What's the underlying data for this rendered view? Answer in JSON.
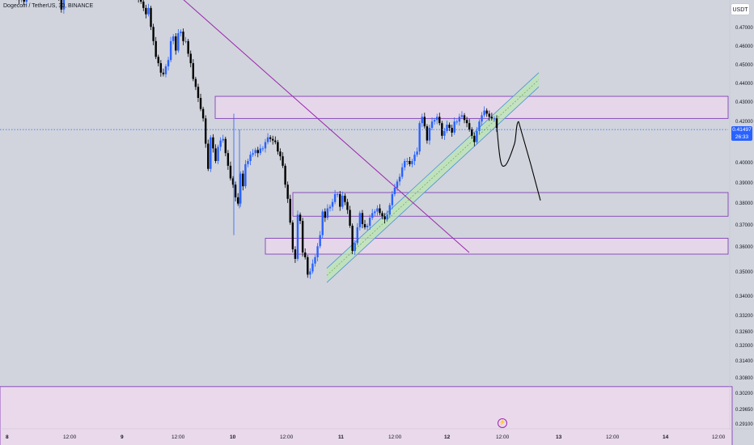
{
  "header": {
    "title": "Dogecoin / TetherUS, 30, BINANCE",
    "currency_button": "USDT"
  },
  "price_tag": {
    "price": "0.41497",
    "countdown": "26:33"
  },
  "event_badge_icon": "lightning-bolt-icon",
  "colors": {
    "background": "#d1d4dc",
    "up_candle": "#2962ff",
    "down_candle": "#000000",
    "zone_fill": "#f0d9ef",
    "zone_border": "#7b2fb4",
    "trendline": "#9c27b0",
    "channel_fill": "#b9e6b3",
    "channel_border": "#4a90d9",
    "current_price_line": "#2962ff"
  },
  "chart_data": {
    "type": "candlestick",
    "y_scale": "price (USDT)",
    "y_tick_labels": [
      "0.47000",
      "0.46000",
      "0.45000",
      "0.44000",
      "0.43000",
      "0.42000",
      "0.41497",
      "0.40000",
      "0.39000",
      "0.38000",
      "0.37000",
      "0.36000",
      "0.35000",
      "0.34000",
      "0.33200",
      "0.32600",
      "0.32000",
      "0.31400",
      "0.30800",
      "0.30200",
      "0.29650",
      "0.29100"
    ],
    "x_tick_labels": [
      "8",
      "12:00",
      "9",
      "12:00",
      "10",
      "12:00",
      "11",
      "12:00",
      "12",
      "12:00",
      "13",
      "12:00",
      "14",
      "12:00"
    ],
    "ylim": [
      0.29,
      0.478
    ],
    "current_price": 0.41497,
    "close_series": [
      0.4615,
      0.4605,
      0.463,
      0.4585,
      0.4595,
      0.461,
      0.457,
      0.456,
      0.458,
      0.4555,
      0.46,
      0.464,
      0.4665,
      0.463,
      0.4605,
      0.462,
      0.4655,
      0.4735,
      0.475,
      0.4705,
      0.465,
      0.462,
      0.46,
      0.4565,
      0.453,
      0.4575,
      0.4605,
      0.4575,
      0.462,
      0.4635,
      0.464,
      0.461,
      0.465,
      0.463,
      0.4595,
      0.462,
      0.464,
      0.4665,
      0.464,
      0.464,
      0.462,
      0.4625,
      0.4645,
      0.463,
      0.4595,
      0.4625,
      0.465,
      0.463,
      0.462,
      0.4645,
      0.4655,
      0.464,
      0.4595,
      0.457,
      0.4585,
      0.4565,
      0.4555,
      0.4535,
      0.4515,
      0.4535,
      0.4475,
      0.443,
      0.438,
      0.436,
      0.433,
      0.4325,
      0.435,
      0.437,
      0.443,
      0.4445,
      0.44,
      0.4455,
      0.446,
      0.443,
      0.443,
      0.439,
      0.436,
      0.431,
      0.4285,
      0.425,
      0.4215,
      0.4185,
      0.4105,
      0.4025,
      0.4125,
      0.409,
      0.405,
      0.4095,
      0.4115,
      0.412,
      0.4075,
      0.4035,
      0.3995,
      0.3975,
      0.3935,
      0.3915,
      0.401,
      0.397,
      0.404,
      0.405,
      0.407,
      0.4075,
      0.4085,
      0.4075,
      0.409,
      0.409,
      0.411,
      0.4125,
      0.412,
      0.4115,
      0.411,
      0.408,
      0.4065,
      0.4035,
      0.3975,
      0.393,
      0.3855,
      0.377,
      0.374,
      0.388,
      0.386,
      0.376,
      0.3745,
      0.369,
      0.37,
      0.3725,
      0.3745,
      0.378,
      0.3815,
      0.389,
      0.387,
      0.39,
      0.3905,
      0.392,
      0.3945,
      0.3945,
      0.3905,
      0.394,
      0.392,
      0.3895,
      0.3845,
      0.3765,
      0.379,
      0.384,
      0.3885,
      0.385,
      0.384,
      0.3845,
      0.387,
      0.3885,
      0.389,
      0.39,
      0.3885,
      0.3875,
      0.3865,
      0.388,
      0.391,
      0.3945,
      0.3965,
      0.3985,
      0.4,
      0.403,
      0.405,
      0.405,
      0.404,
      0.405,
      0.407,
      0.408,
      0.417,
      0.419,
      0.416,
      0.4115,
      0.4155,
      0.4175,
      0.418,
      0.419,
      0.417,
      0.413,
      0.4145,
      0.4165,
      0.4155,
      0.414,
      0.4175,
      0.4175,
      0.419,
      0.4195,
      0.418,
      0.417,
      0.415,
      0.413,
      0.411,
      0.4145,
      0.4175,
      0.4195,
      0.421,
      0.42,
      0.419,
      0.4185,
      0.4185,
      0.4155
    ],
    "zones": [
      {
        "from": 0.4185,
        "to": 0.4255
      },
      {
        "from": 0.3875,
        "to": 0.395
      },
      {
        "from": 0.3755,
        "to": 0.3805
      },
      {
        "from": 0.311,
        "to": 0.3335
      }
    ],
    "descending_trendline": {
      "start_price": 0.469,
      "end_price": 0.376
    },
    "ascending_channel": {
      "lower_start": 0.3665,
      "lower_end": 0.4285,
      "upper_start": 0.371,
      "upper_end": 0.433
    },
    "projected_path": [
      0.4165,
      0.4035,
      0.4105,
      0.4175,
      0.404,
      0.3925
    ]
  }
}
